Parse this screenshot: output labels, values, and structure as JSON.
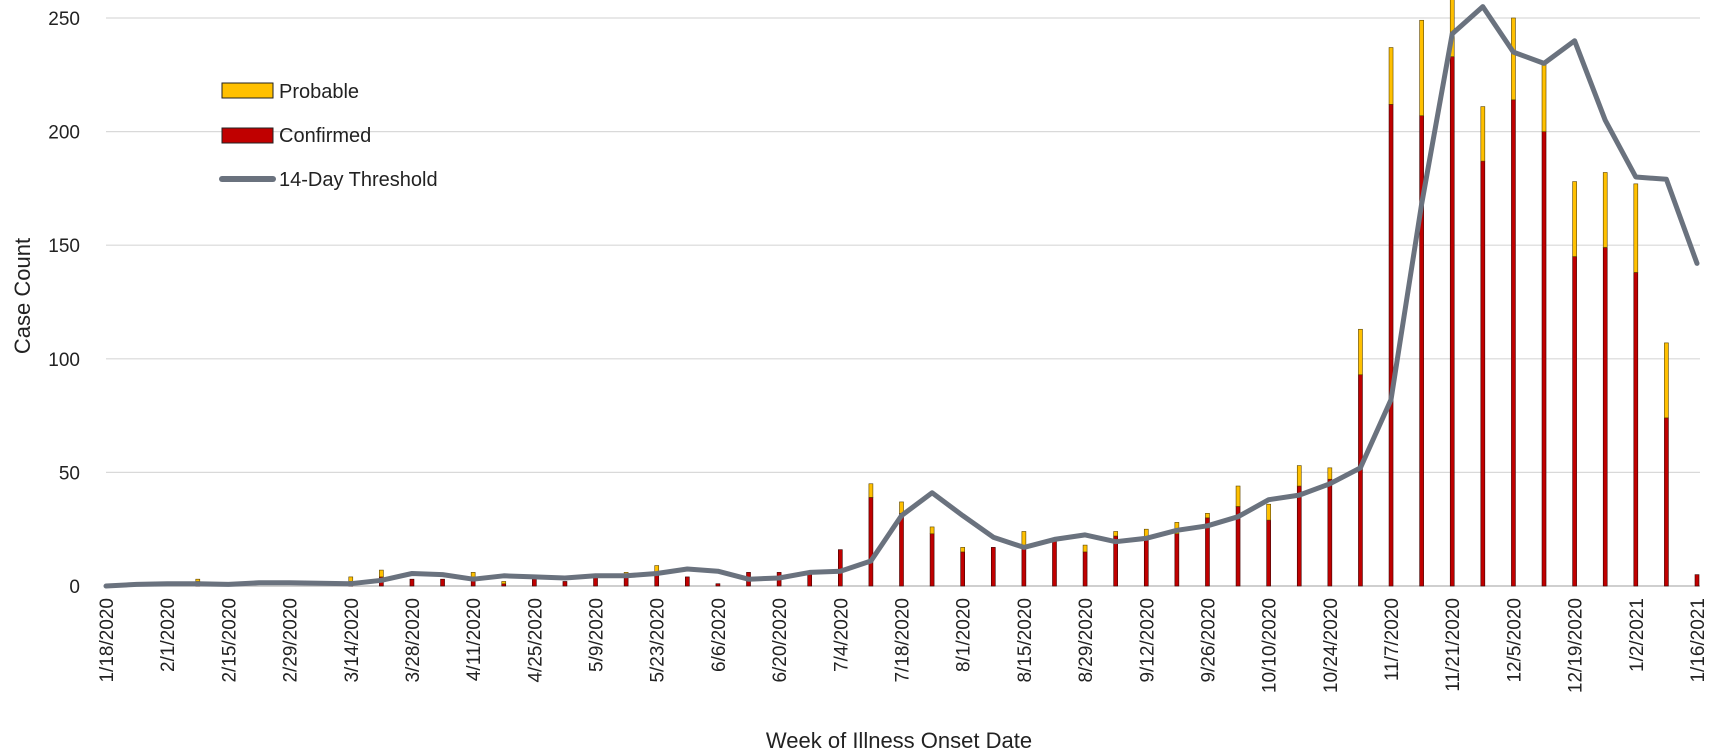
{
  "chart_data": {
    "type": "bar",
    "stacked": true,
    "xlabel": "Week of Illness Onset Date",
    "ylabel": "Case Count",
    "ylim": [
      0,
      250
    ],
    "yticks": [
      0,
      50,
      100,
      150,
      200,
      250
    ],
    "grid": true,
    "legend_position": "top-left",
    "categories": [
      "1/18/2020",
      "1/25/2020",
      "2/1/2020",
      "2/8/2020",
      "2/15/2020",
      "2/22/2020",
      "2/29/2020",
      "3/7/2020",
      "3/14/2020",
      "3/21/2020",
      "3/28/2020",
      "4/4/2020",
      "4/11/2020",
      "4/18/2020",
      "4/25/2020",
      "5/2/2020",
      "5/9/2020",
      "5/16/2020",
      "5/23/2020",
      "5/30/2020",
      "6/6/2020",
      "6/13/2020",
      "6/20/2020",
      "6/27/2020",
      "7/4/2020",
      "7/11/2020",
      "7/18/2020",
      "7/25/2020",
      "8/1/2020",
      "8/8/2020",
      "8/15/2020",
      "8/22/2020",
      "8/29/2020",
      "9/5/2020",
      "9/12/2020",
      "9/19/2020",
      "9/26/2020",
      "10/3/2020",
      "10/10/2020",
      "10/17/2020",
      "10/24/2020",
      "10/31/2020",
      "11/7/2020",
      "11/14/2020",
      "11/21/2020",
      "11/28/2020",
      "12/5/2020",
      "12/12/2020",
      "12/19/2020",
      "12/26/2020",
      "1/2/2021",
      "1/9/2021",
      "1/16/2021"
    ],
    "tick_labels": [
      "1/18/2020",
      "2/1/2020",
      "2/15/2020",
      "2/29/2020",
      "3/14/2020",
      "3/28/2020",
      "4/11/2020",
      "4/25/2020",
      "5/9/2020",
      "5/23/2020",
      "6/6/2020",
      "6/20/2020",
      "7/4/2020",
      "7/18/2020",
      "8/1/2020",
      "8/15/2020",
      "8/29/2020",
      "9/12/2020",
      "9/26/2020",
      "10/10/2020",
      "10/24/2020",
      "11/7/2020",
      "11/21/2020",
      "12/5/2020",
      "12/19/2020",
      "1/2/2021",
      "1/16/2021"
    ],
    "series": [
      {
        "name": "Confirmed",
        "color": "#C00000",
        "values": [
          0,
          0,
          0,
          2,
          0,
          0,
          0,
          0,
          2,
          4,
          3,
          3,
          4,
          1,
          3,
          2,
          4,
          5,
          5,
          4,
          1,
          6,
          6,
          6,
          16,
          39,
          32,
          23,
          15,
          17,
          17,
          20,
          15,
          22,
          21,
          23,
          30,
          35,
          29,
          44,
          47,
          93,
          212,
          207,
          233,
          187,
          214,
          200,
          145,
          149,
          138,
          74,
          5
        ]
      },
      {
        "name": "Probable",
        "color": "#FFC000",
        "values": [
          0,
          0,
          0,
          1,
          0,
          0,
          0,
          0,
          2,
          3,
          0,
          0,
          2,
          1,
          0,
          0,
          0,
          1,
          4,
          0,
          0,
          0,
          0,
          0,
          0,
          6,
          5,
          3,
          2,
          0,
          7,
          0,
          3,
          2,
          4,
          5,
          2,
          9,
          7,
          9,
          5,
          20,
          25,
          42,
          27,
          24,
          36,
          31,
          33,
          33,
          39,
          33,
          0
        ]
      },
      {
        "name": "14-Day Threshold",
        "type": "line",
        "color": "#6A727E",
        "values": [
          0,
          0.7,
          1,
          1,
          0.7,
          1.4,
          1.4,
          1.2,
          1,
          2.5,
          5.5,
          5,
          3,
          4.5,
          4,
          3.5,
          4.5,
          4.5,
          5.5,
          7.5,
          6.5,
          3,
          3.5,
          6,
          6.5,
          11,
          31,
          41,
          31,
          21.5,
          17,
          20.5,
          22.5,
          19.5,
          21,
          24.5,
          26.5,
          30.5,
          38,
          40,
          45,
          52,
          82,
          168,
          243,
          255,
          235,
          230,
          240,
          205,
          180,
          179,
          142
        ]
      }
    ]
  }
}
